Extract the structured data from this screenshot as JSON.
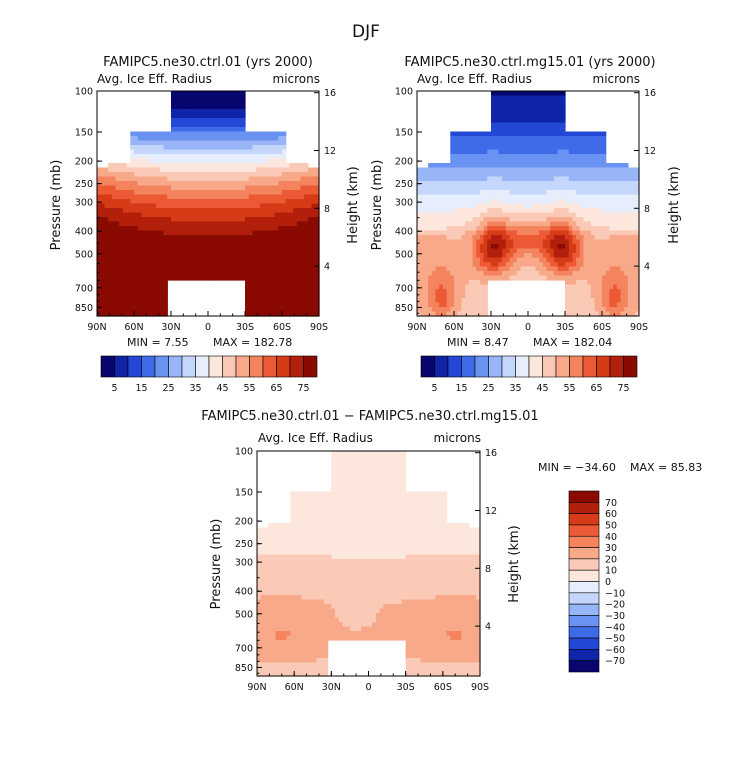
{
  "figure_title": "DJF",
  "chart_data": [
    {
      "type": "heatmap",
      "id": "p1",
      "title": "FAMIPC5.ne30.ctrl.01 (yrs 2000)",
      "left_label": "Avg. Ice Eff. Radius",
      "right_label": "microns",
      "xlabel": "",
      "ylabel": "Pressure (mb)",
      "ylabel_right": "Height (km)",
      "x_ticks": [
        "90N",
        "60N",
        "30N",
        "0",
        "30S",
        "60S",
        "90S"
      ],
      "x_tick_values": [
        90,
        60,
        30,
        0,
        -30,
        -60,
        -90
      ],
      "y_ticks": [
        "100",
        "150",
        "200",
        "250",
        "300",
        "400",
        "500",
        "700",
        "850"
      ],
      "y_tick_values": [
        100,
        150,
        200,
        250,
        300,
        400,
        500,
        700,
        850
      ],
      "ylim": [
        100,
        925
      ],
      "xlim": [
        90,
        -90
      ],
      "height_ticks": [
        "16",
        "12",
        "8",
        "4"
      ],
      "height_tick_values": [
        16,
        12,
        8,
        4
      ],
      "stat_min": "MIN =     7.55",
      "stat_max": "MAX = 182.78",
      "field_style": "ctrl",
      "levels": [
        5,
        10,
        15,
        20,
        25,
        30,
        35,
        40,
        45,
        50,
        55,
        60,
        65,
        70,
        75
      ],
      "colorbar_labels": [
        "5",
        "15",
        "25",
        "35",
        "45",
        "55",
        "65",
        "75"
      ]
    },
    {
      "type": "heatmap",
      "id": "p2",
      "title": "FAMIPC5.ne30.ctrl.mg15.01 (yrs 2000)",
      "left_label": "Avg. Ice Eff. Radius",
      "right_label": "microns",
      "xlabel": "",
      "ylabel": "Pressure (mb)",
      "ylabel_right": "Height (km)",
      "x_ticks": [
        "90N",
        "60N",
        "30N",
        "0",
        "30S",
        "60S",
        "90S"
      ],
      "x_tick_values": [
        90,
        60,
        30,
        0,
        -30,
        -60,
        -90
      ],
      "y_ticks": [
        "100",
        "150",
        "200",
        "250",
        "300",
        "400",
        "500",
        "700",
        "850"
      ],
      "y_tick_values": [
        100,
        150,
        200,
        250,
        300,
        400,
        500,
        700,
        850
      ],
      "ylim": [
        100,
        925
      ],
      "xlim": [
        90,
        -90
      ],
      "height_ticks": [
        "16",
        "12",
        "8",
        "4"
      ],
      "height_tick_values": [
        16,
        12,
        8,
        4
      ],
      "stat_min": "MIN =     8.47",
      "stat_max": "MAX = 182.04",
      "field_style": "mg15",
      "levels": [
        5,
        10,
        15,
        20,
        25,
        30,
        35,
        40,
        45,
        50,
        55,
        60,
        65,
        70,
        75
      ],
      "colorbar_labels": [
        "5",
        "15",
        "25",
        "35",
        "45",
        "55",
        "65",
        "75"
      ]
    },
    {
      "type": "heatmap",
      "id": "p3",
      "title": "FAMIPC5.ne30.ctrl.01 − FAMIPC5.ne30.ctrl.mg15.01",
      "left_label": "Avg. Ice Eff. Radius",
      "right_label": "microns",
      "xlabel": "",
      "ylabel": "Pressure (mb)",
      "ylabel_right": "Height (km)",
      "x_ticks": [
        "90N",
        "60N",
        "30N",
        "0",
        "30S",
        "60S",
        "90S"
      ],
      "x_tick_values": [
        90,
        60,
        30,
        0,
        -30,
        -60,
        -90
      ],
      "y_ticks": [
        "100",
        "150",
        "200",
        "250",
        "300",
        "400",
        "500",
        "700",
        "850"
      ],
      "y_tick_values": [
        100,
        150,
        200,
        250,
        300,
        400,
        500,
        700,
        850
      ],
      "ylim": [
        100,
        925
      ],
      "xlim": [
        90,
        -90
      ],
      "height_ticks": [
        "16",
        "12",
        "8",
        "4"
      ],
      "height_tick_values": [
        16,
        12,
        8,
        4
      ],
      "stat_min": "MIN = −34.60",
      "stat_max": "MAX =   85.83",
      "field_style": "diff",
      "levels": [
        -70,
        -60,
        -50,
        -40,
        -30,
        -20,
        -10,
        0,
        10,
        20,
        30,
        40,
        50,
        60,
        70
      ],
      "colorbar_labels": [
        "70",
        "60",
        "50",
        "40",
        "30",
        "20",
        "10",
        "0",
        "−10",
        "−20",
        "−30",
        "−40",
        "−50",
        "−60",
        "−70"
      ]
    }
  ],
  "colors": {
    "palette16": [
      "#06066e",
      "#0f24a8",
      "#2448d6",
      "#3f6ae8",
      "#6a92f2",
      "#98b6f7",
      "#c4d6fb",
      "#e6edfd",
      "#fde6dc",
      "#fbcab6",
      "#f8a98a",
      "#f4845e",
      "#ec5a35",
      "#d63b18",
      "#b21f0a",
      "#8a0a02"
    ]
  }
}
